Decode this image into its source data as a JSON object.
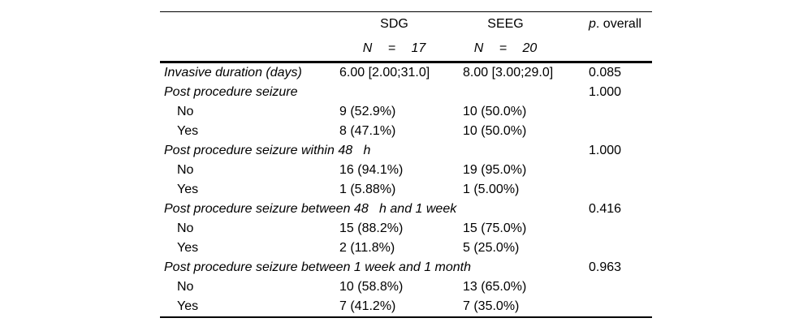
{
  "table": {
    "header": {
      "group1_name": "SDG",
      "group1_n": "N = 17",
      "group2_name": "SEEG",
      "group2_n": "N = 20",
      "p_label_italic": "p",
      "p_label_rest": ". overall"
    },
    "rows": [
      {
        "label": "Invasive duration (days)",
        "sdg": "6.00 [2.00;31.0]",
        "seeg": "8.00 [3.00;29.0]",
        "p": "0.085"
      },
      {
        "label": "Post procedure seizure",
        "sdg": "",
        "seeg": "",
        "p": "1.000"
      },
      {
        "label": "No",
        "sdg": "9 (52.9%)",
        "seeg": "10 (50.0%)",
        "p": ""
      },
      {
        "label": "Yes",
        "sdg": "8 (47.1%)",
        "seeg": "10 (50.0%)",
        "p": ""
      },
      {
        "label": "Post procedure seizure within 48   h",
        "sdg": "",
        "seeg": "",
        "p": "1.000"
      },
      {
        "label": "No",
        "sdg": "16 (94.1%)",
        "seeg": "19 (95.0%)",
        "p": ""
      },
      {
        "label": "Yes",
        "sdg": "1 (5.88%)",
        "seeg": "1 (5.00%)",
        "p": ""
      },
      {
        "label": "Post procedure seizure between 48   h and 1 week",
        "sdg": "",
        "seeg": "",
        "p": "0.416"
      },
      {
        "label": "No",
        "sdg": "15 (88.2%)",
        "seeg": "15 (75.0%)",
        "p": ""
      },
      {
        "label": "Yes",
        "sdg": "2 (11.8%)",
        "seeg": "5 (25.0%)",
        "p": ""
      },
      {
        "label": "Post procedure seizure between 1 week and 1 month",
        "sdg": "",
        "seeg": "",
        "p": "0.963"
      },
      {
        "label": "No",
        "sdg": "10 (58.8%)",
        "seeg": "13 (65.0%)",
        "p": ""
      },
      {
        "label": "Yes",
        "sdg": "7 (41.2%)",
        "seeg": "7 (35.0%)",
        "p": ""
      }
    ]
  }
}
